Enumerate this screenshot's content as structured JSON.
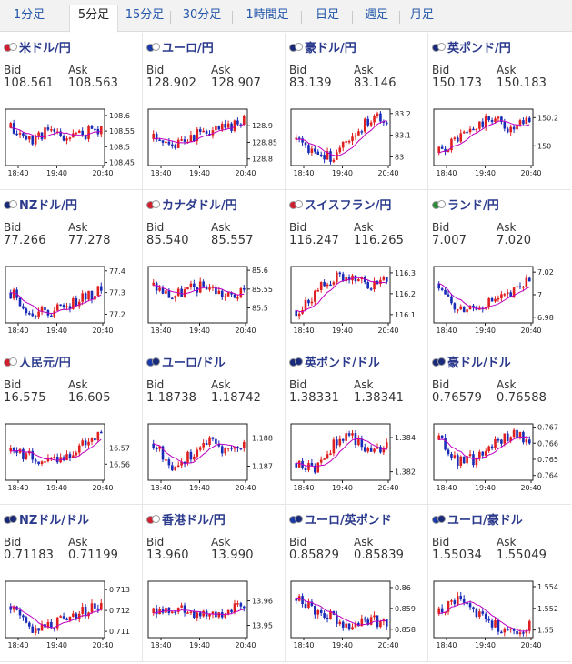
{
  "tabs": [
    {
      "label": "1分足"
    },
    {
      "label": "5分足",
      "active": true
    },
    {
      "label": "15分足"
    },
    {
      "label": "30分足"
    },
    {
      "label": "1時間足"
    },
    {
      "label": "日足"
    },
    {
      "label": "週足"
    },
    {
      "label": "月足"
    }
  ],
  "labels": {
    "bid": "Bid",
    "ask": "Ask"
  },
  "colors": {
    "up": "#e02020",
    "down": "#1a2bb8",
    "ma": "#c000c0",
    "title": "#2b3a8c"
  },
  "pairs": [
    {
      "name": "米ドル/円",
      "flags": [
        "#d21f2f",
        "#ffffff"
      ],
      "bid": "108.561",
      "ask": "108.563",
      "chart_data": {
        "type": "candlestick",
        "x_ticks": [
          "18:40",
          "19:40",
          "20:40"
        ],
        "y_ticks": [
          "108.6",
          "108.55",
          "108.5",
          "108.45"
        ],
        "ylim": [
          108.44,
          108.62
        ],
        "seed": 11,
        "trend": [
          108.56,
          108.52,
          108.55,
          108.53,
          108.54,
          108.56
        ]
      }
    },
    {
      "name": "ユーロ/円",
      "flags": [
        "#1a3aa8",
        "#ffffff"
      ],
      "bid": "128.902",
      "ask": "128.907",
      "chart_data": {
        "type": "candlestick",
        "x_ticks": [
          "18:40",
          "19:40",
          "20:40"
        ],
        "y_ticks": [
          "128.9",
          "128.85",
          "128.8"
        ],
        "ylim": [
          128.78,
          128.95
        ],
        "seed": 23,
        "trend": [
          128.86,
          128.83,
          128.87,
          128.88,
          128.89,
          128.92
        ]
      }
    },
    {
      "name": "豪ドル/円",
      "flags": [
        "#1a2a7a",
        "#ffffff"
      ],
      "bid": "83.139",
      "ask": "83.146",
      "chart_data": {
        "type": "candlestick",
        "x_ticks": [
          "18:40",
          "19:40",
          "20:40"
        ],
        "y_ticks": [
          "83.2",
          "83.1",
          "83"
        ],
        "ylim": [
          82.96,
          83.22
        ],
        "seed": 37,
        "trend": [
          83.08,
          83.0,
          83.0,
          83.1,
          83.17,
          83.18
        ]
      }
    },
    {
      "name": "英ポンド/円",
      "flags": [
        "#1a2a7a",
        "#ffffff"
      ],
      "bid": "150.173",
      "ask": "150.183",
      "chart_data": {
        "type": "candlestick",
        "x_ticks": [
          "18:40",
          "19:40",
          "20:40"
        ],
        "y_ticks": [
          "150.2",
          "150"
        ],
        "ylim": [
          149.86,
          150.26
        ],
        "seed": 41,
        "trend": [
          149.95,
          150.05,
          150.12,
          150.2,
          150.1,
          150.18
        ]
      }
    },
    {
      "name": "NZドル/円",
      "flags": [
        "#1a2a7a",
        "#ffffff"
      ],
      "bid": "77.266",
      "ask": "77.278",
      "chart_data": {
        "type": "candlestick",
        "x_ticks": [
          "18:40",
          "19:40",
          "20:40"
        ],
        "y_ticks": [
          "77.4",
          "77.3",
          "77.2"
        ],
        "ylim": [
          77.16,
          77.42
        ],
        "seed": 53,
        "trend": [
          77.3,
          77.22,
          77.2,
          77.24,
          77.27,
          77.31
        ]
      }
    },
    {
      "name": "カナダドル/円",
      "flags": [
        "#d21f2f",
        "#ffffff"
      ],
      "bid": "85.540",
      "ask": "85.557",
      "chart_data": {
        "type": "candlestick",
        "x_ticks": [
          "18:40",
          "19:40",
          "20:40"
        ],
        "y_ticks": [
          "85.6",
          "85.55",
          "85.5"
        ],
        "ylim": [
          85.46,
          85.61
        ],
        "seed": 67,
        "trend": [
          85.56,
          85.53,
          85.55,
          85.56,
          85.53,
          85.54
        ]
      }
    },
    {
      "name": "スイスフラン/円",
      "flags": [
        "#d21f2f",
        "#ffffff"
      ],
      "bid": "116.247",
      "ask": "116.265",
      "chart_data": {
        "type": "candlestick",
        "x_ticks": [
          "18:40",
          "19:40",
          "20:40"
        ],
        "y_ticks": [
          "116.3",
          "116.2",
          "116.1"
        ],
        "ylim": [
          116.06,
          116.33
        ],
        "seed": 71,
        "trend": [
          116.12,
          116.2,
          116.27,
          116.28,
          116.24,
          116.28
        ]
      }
    },
    {
      "name": "ランド/円",
      "flags": [
        "#2a8a3a",
        "#ffffff"
      ],
      "bid": "7.007",
      "ask": "7.020",
      "chart_data": {
        "type": "candlestick",
        "x_ticks": [
          "18:40",
          "19:40",
          "20:40"
        ],
        "y_ticks": [
          "7.02",
          "7",
          "6.98"
        ],
        "ylim": [
          6.975,
          7.025
        ],
        "seed": 83,
        "trend": [
          7.01,
          6.985,
          6.99,
          6.995,
          7.0,
          7.015
        ]
      }
    },
    {
      "name": "人民元/円",
      "flags": [
        "#d21f2f",
        "#ffffff"
      ],
      "bid": "16.575",
      "ask": "16.605",
      "chart_data": {
        "type": "candlestick",
        "x_ticks": [
          "18:40",
          "19:40",
          "20:40"
        ],
        "y_ticks": [
          "16.57",
          "16.56"
        ],
        "ylim": [
          16.55,
          16.585
        ],
        "seed": 97,
        "trend": [
          16.568,
          16.566,
          16.562,
          16.565,
          16.572,
          16.58
        ]
      }
    },
    {
      "name": "ユーロ/ドル",
      "flags": [
        "#1a3aa8",
        "#1a2a7a"
      ],
      "bid": "1.18738",
      "ask": "1.18742",
      "chart_data": {
        "type": "candlestick",
        "x_ticks": [
          "18:40",
          "19:40",
          "20:40"
        ],
        "y_ticks": [
          "1.188",
          "1.187"
        ],
        "ylim": [
          1.1865,
          1.1885
        ],
        "seed": 101,
        "trend": [
          1.1878,
          1.187,
          1.1874,
          1.1879,
          1.1876,
          1.1877
        ]
      }
    },
    {
      "name": "英ポンド/ドル",
      "flags": [
        "#1a2a7a",
        "#1a2a7a"
      ],
      "bid": "1.38331",
      "ask": "1.38341",
      "chart_data": {
        "type": "candlestick",
        "x_ticks": [
          "18:40",
          "19:40",
          "20:40"
        ],
        "y_ticks": [
          "1.384",
          "1.382"
        ],
        "ylim": [
          1.3815,
          1.3848
        ],
        "seed": 113,
        "trend": [
          1.3825,
          1.3822,
          1.3835,
          1.3842,
          1.3832,
          1.3834
        ]
      }
    },
    {
      "name": "豪ドル/ドル",
      "flags": [
        "#1a2a7a",
        "#1a2a7a"
      ],
      "bid": "0.76579",
      "ask": "0.76588",
      "chart_data": {
        "type": "candlestick",
        "x_ticks": [
          "18:40",
          "19:40",
          "20:40"
        ],
        "y_ticks": [
          "0.767",
          "0.766",
          "0.765",
          "0.764"
        ],
        "ylim": [
          0.7637,
          0.7672
        ],
        "seed": 127,
        "trend": [
          0.7662,
          0.7648,
          0.765,
          0.766,
          0.7666,
          0.7662
        ]
      }
    },
    {
      "name": "NZドル/ドル",
      "flags": [
        "#1a2a7a",
        "#1a2a7a"
      ],
      "bid": "0.71183",
      "ask": "0.71199",
      "chart_data": {
        "type": "candlestick",
        "x_ticks": [
          "18:40",
          "19:40",
          "20:40"
        ],
        "y_ticks": [
          "0.713",
          "0.712",
          "0.711"
        ],
        "ylim": [
          0.7107,
          0.7134
        ],
        "seed": 131,
        "trend": [
          0.7122,
          0.7112,
          0.7112,
          0.7118,
          0.7119,
          0.7123
        ]
      }
    },
    {
      "name": "香港ドル/円",
      "flags": [
        "#d21f2f",
        "#ffffff"
      ],
      "bid": "13.960",
      "ask": "13.990",
      "chart_data": {
        "type": "candlestick",
        "x_ticks": [
          "18:40",
          "19:40",
          "20:40"
        ],
        "y_ticks": [
          "13.96",
          "13.95"
        ],
        "ylim": [
          13.945,
          13.968
        ],
        "seed": 139,
        "trend": [
          13.955,
          13.957,
          13.956,
          13.954,
          13.955,
          13.958
        ]
      }
    },
    {
      "name": "ユーロ/英ポンド",
      "flags": [
        "#1a3aa8",
        "#1a2a7a"
      ],
      "bid": "0.85829",
      "ask": "0.85839",
      "chart_data": {
        "type": "candlestick",
        "x_ticks": [
          "18:40",
          "19:40",
          "20:40"
        ],
        "y_ticks": [
          "0.86",
          "0.859",
          "0.858"
        ],
        "ylim": [
          0.8576,
          0.8603
        ],
        "seed": 149,
        "trend": [
          0.8595,
          0.859,
          0.8586,
          0.8582,
          0.8584,
          0.8583
        ]
      }
    },
    {
      "name": "ユーロ/豪ドル",
      "flags": [
        "#1a3aa8",
        "#1a2a7a"
      ],
      "bid": "1.55034",
      "ask": "1.55049",
      "chart_data": {
        "type": "candlestick",
        "x_ticks": [
          "18:40",
          "19:40",
          "20:40"
        ],
        "y_ticks": [
          "1.554",
          "1.552",
          "1.55"
        ],
        "ylim": [
          1.5493,
          1.5545
        ],
        "seed": 157,
        "trend": [
          1.5515,
          1.553,
          1.5515,
          1.5505,
          1.55,
          1.5503
        ]
      }
    }
  ]
}
